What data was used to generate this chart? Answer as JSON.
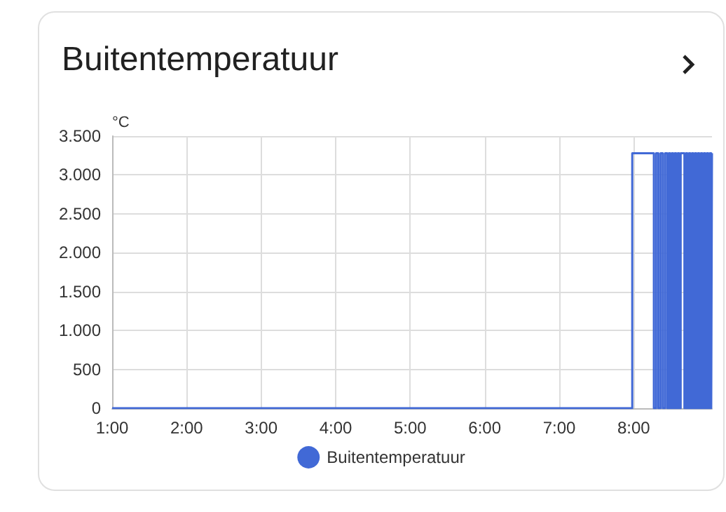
{
  "chart_data": {
    "type": "step",
    "title": "Buitentemperatuur",
    "ylabel": "°C",
    "x": [
      1,
      7.98,
      8.27,
      8.3,
      8.33,
      8.36,
      8.39,
      8.42,
      8.45,
      8.47,
      8.49,
      8.51,
      8.53,
      8.55,
      8.57,
      8.59,
      8.61,
      8.63,
      8.68,
      8.7,
      8.72,
      8.74,
      8.76,
      8.78,
      8.8,
      8.82,
      8.84,
      8.86,
      8.88,
      8.9,
      8.92,
      8.94,
      8.96,
      8.98,
      9,
      9.02,
      9.04,
      9.05
    ],
    "series": [
      {
        "name": "Buitentemperatuur",
        "color": "#4169d6",
        "values": [
          0,
          3280,
          0,
          3280,
          0,
          3280,
          0,
          3280,
          0,
          3280,
          0,
          3280,
          0,
          3280,
          0,
          3280,
          0,
          3280,
          0,
          3280,
          0,
          3280,
          0,
          3280,
          0,
          3280,
          0,
          3280,
          0,
          3280,
          0,
          3280,
          0,
          3280,
          0,
          3280,
          0,
          3280
        ]
      }
    ],
    "xlim": [
      1,
      9.05
    ],
    "xticks": [
      {
        "value": 1,
        "label": "1:00"
      },
      {
        "value": 2,
        "label": "2:00"
      },
      {
        "value": 3,
        "label": "3:00"
      },
      {
        "value": 4,
        "label": "4:00"
      },
      {
        "value": 5,
        "label": "5:00"
      },
      {
        "value": 6,
        "label": "6:00"
      },
      {
        "value": 7,
        "label": "7:00"
      },
      {
        "value": 8,
        "label": "8:00"
      }
    ],
    "ylim": [
      0,
      3500
    ],
    "yticks": [
      0,
      500,
      {
        "value": 1000,
        "label": "1.000"
      },
      {
        "value": 1500,
        "label": "1.500"
      },
      {
        "value": 2000,
        "label": "2.000"
      },
      {
        "value": 2500,
        "label": "2.500"
      },
      {
        "value": 3000,
        "label": "3.000"
      },
      {
        "value": 3500,
        "label": "3.500"
      }
    ],
    "grid": true,
    "legend": "bottom",
    "marker": "none",
    "line_style": "solid"
  }
}
